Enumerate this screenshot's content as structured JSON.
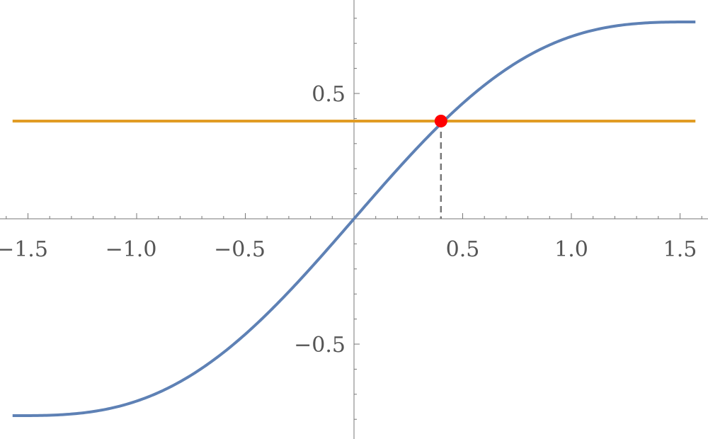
{
  "chart_data": {
    "type": "line",
    "title": "",
    "xlabel": "",
    "ylabel": "",
    "xlim": [
      -1.5708,
      1.5708
    ],
    "ylim": [
      -0.8,
      0.8
    ],
    "grid": false,
    "x_ticks": [
      {
        "value": -1.5,
        "label": "−1.5"
      },
      {
        "value": -1.0,
        "label": "−1.0"
      },
      {
        "value": -0.5,
        "label": "−0.5"
      },
      {
        "value": 0.5,
        "label": "0.5"
      },
      {
        "value": 1.0,
        "label": "1.0"
      },
      {
        "value": 1.5,
        "label": "1.5"
      }
    ],
    "y_ticks": [
      {
        "value": 0.5,
        "label": "0.5"
      },
      {
        "value": -0.5,
        "label": "−0.5"
      }
    ],
    "series": [
      {
        "kind": "curve",
        "expression": "x/2 + sin(2x)/4",
        "x_range": [
          -1.5708,
          1.5708
        ],
        "color": "#5e81b5"
      },
      {
        "kind": "horizontal-line",
        "y": 0.39,
        "color": "#e19c24"
      }
    ],
    "marker": {
      "x": 0.4,
      "y": 0.39,
      "color": "#ff0000"
    },
    "dropline": {
      "x": 0.4,
      "color": "#777777",
      "style": "dashed"
    }
  }
}
